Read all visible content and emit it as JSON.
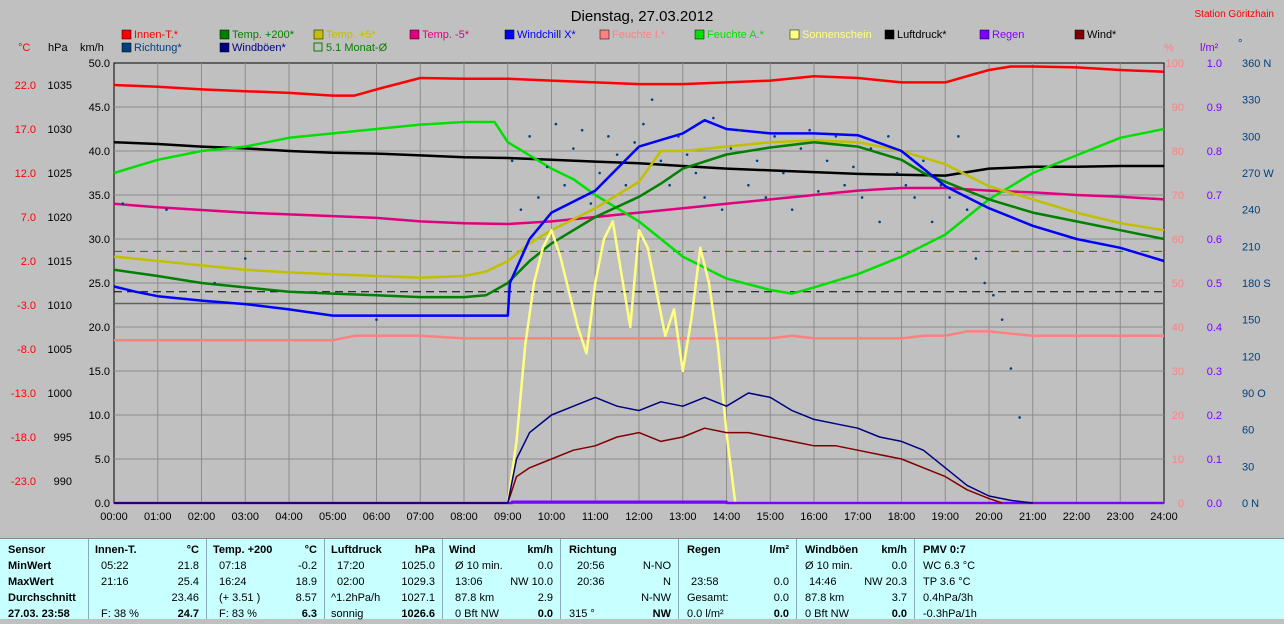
{
  "title": "Dienstag, 27.03.2012",
  "station": "Station Göritzhain",
  "legend": [
    {
      "label": "Innen-T.*",
      "color": "#ff0000"
    },
    {
      "label": "Temp. +200*",
      "color": "#008000"
    },
    {
      "label": "Temp. +5*",
      "color": "#c0c000"
    },
    {
      "label": "Temp. -5*",
      "color": "#e0007f"
    },
    {
      "label": "Windchill X*",
      "color": "#0000ff"
    },
    {
      "label": "Feuchte I.*",
      "color": "#ff8080"
    },
    {
      "label": "Feuchte A.*",
      "color": "#00e000"
    },
    {
      "label": "Sonnenschein",
      "color": "#ffff80"
    },
    {
      "label": "Luftdruck*",
      "color": "#000000"
    },
    {
      "label": "Regen",
      "color": "#8000ff"
    },
    {
      "label": "Wind*",
      "color": "#800000"
    },
    {
      "label": "Richtung*",
      "color": "#004080"
    },
    {
      "label": "Windböen*",
      "color": "#000080"
    },
    {
      "label": "5.1 Monat-Ø",
      "color": "#008000"
    }
  ],
  "axes": {
    "unit_c": "°C",
    "unit_hpa": "hPa",
    "unit_kmh": "km/h",
    "unit_pct": "%",
    "unit_lm2": "l/m²",
    "unit_deg": "°",
    "c_ticks": [
      "22.0",
      "17.0",
      "12.0",
      "7.0",
      "2.0",
      "-3.0",
      "-8.0",
      "-13.0",
      "-18.0",
      "-23.0"
    ],
    "hpa_ticks": [
      "1035",
      "1030",
      "1025",
      "1020",
      "1015",
      "1010",
      "1005",
      "1000",
      "995",
      "990"
    ],
    "kmh_ticks": [
      "50.0",
      "45.0",
      "40.0",
      "35.0",
      "30.0",
      "25.0",
      "20.0",
      "15.0",
      "10.0",
      "5.0",
      "0.0"
    ],
    "pct_ticks": [
      "100",
      "90",
      "80",
      "70",
      "60",
      "50",
      "40",
      "30",
      "20",
      "10",
      "0"
    ],
    "lm2_ticks": [
      "1.0",
      "0.9",
      "0.8",
      "0.7",
      "0.6",
      "0.5",
      "0.4",
      "0.3",
      "0.2",
      "0.1",
      "0.0"
    ],
    "deg_ticks": [
      "360 N",
      "330",
      "300",
      "270 W",
      "240",
      "210",
      "180 S",
      "150",
      "120",
      "90 O",
      "60",
      "30",
      "0 N"
    ],
    "x_ticks": [
      "00:00",
      "01:00",
      "02:00",
      "03:00",
      "04:00",
      "05:00",
      "06:00",
      "07:00",
      "08:00",
      "09:00",
      "10:00",
      "11:00",
      "12:00",
      "13:00",
      "14:00",
      "15:00",
      "16:00",
      "17:00",
      "18:00",
      "19:00",
      "20:00",
      "21:00",
      "22:00",
      "23:00",
      "24:00"
    ]
  },
  "chart_data": {
    "type": "line",
    "x_unit": "hours",
    "ylim_kmh": [
      0,
      50
    ],
    "ylim_c": [
      -23,
      27
    ],
    "ylim_hpa": [
      990,
      1040
    ],
    "ylim_pct": [
      0,
      100
    ],
    "ylim_deg": [
      0,
      360
    ],
    "grid": true,
    "reference_lines": [
      {
        "name": "5.1 Monat-Ø",
        "scale": "kmh",
        "value": 28.6,
        "color": "#008000"
      },
      {
        "name": "",
        "scale": "kmh",
        "value": 24.0,
        "color": "#000000"
      }
    ],
    "series": [
      {
        "name": "Innen-T.*",
        "scale": "kmh",
        "color": "#ff0000",
        "x": [
          0,
          1,
          2,
          3,
          4,
          5,
          5.5,
          6,
          7,
          8,
          9,
          10,
          11,
          12,
          13,
          14,
          15,
          16,
          17,
          18,
          19,
          19.5,
          20,
          20.5,
          21,
          22,
          23,
          24
        ],
        "y": [
          47.5,
          47.3,
          47.0,
          46.8,
          46.6,
          46.3,
          46.3,
          47.0,
          48.3,
          48.2,
          48.2,
          48.0,
          47.8,
          47.6,
          47.6,
          47.8,
          48.0,
          48.5,
          48.3,
          47.8,
          47.8,
          48.5,
          49.2,
          49.6,
          49.6,
          49.5,
          49.2,
          49.0
        ]
      },
      {
        "name": "Temp. +200*",
        "scale": "kmh",
        "color": "#008000",
        "x": [
          0,
          1,
          2,
          3,
          4,
          5,
          6,
          7,
          8,
          8.5,
          9,
          9.5,
          10,
          11,
          12,
          12.5,
          13,
          14,
          15,
          16,
          17,
          18,
          18.5,
          19,
          20,
          21,
          22,
          23,
          24
        ],
        "y": [
          26.5,
          25.8,
          25.0,
          24.5,
          24.0,
          23.8,
          23.6,
          23.4,
          23.4,
          23.6,
          25.0,
          27.5,
          29.5,
          32.5,
          34.8,
          36.3,
          38.0,
          39.6,
          40.4,
          41.0,
          40.5,
          39.0,
          37.5,
          36.5,
          34.5,
          33.0,
          32.0,
          31.0,
          30.0
        ]
      },
      {
        "name": "Temp. +5*",
        "scale": "kmh",
        "color": "#c0c000",
        "x": [
          0,
          1,
          2,
          3,
          4,
          5,
          6,
          7,
          8,
          8.5,
          9,
          9.5,
          10,
          11,
          12,
          12.5,
          13,
          14,
          15,
          16,
          17,
          18,
          19,
          20,
          21,
          22,
          23,
          24
        ],
        "y": [
          28.0,
          27.5,
          27.0,
          26.5,
          26.2,
          26.0,
          25.8,
          25.6,
          25.8,
          26.3,
          27.5,
          29.5,
          31.0,
          33.5,
          36.5,
          40.0,
          40.0,
          40.5,
          41.0,
          41.2,
          41.0,
          40.0,
          38.5,
          36.0,
          34.5,
          33.0,
          31.8,
          31.0
        ]
      },
      {
        "name": "Temp. -5*",
        "scale": "kmh",
        "color": "#e0007f",
        "x": [
          0,
          1,
          2,
          3,
          4,
          5,
          6,
          7,
          8,
          9,
          10,
          11,
          12,
          13,
          14,
          15,
          16,
          17,
          18,
          19,
          20,
          21,
          22,
          23,
          24
        ],
        "y": [
          34.0,
          33.6,
          33.3,
          33.0,
          32.8,
          32.6,
          32.4,
          32.0,
          31.8,
          31.7,
          32.0,
          32.5,
          33.0,
          33.5,
          34.0,
          34.5,
          35.0,
          35.5,
          35.8,
          35.8,
          35.5,
          35.3,
          35.0,
          34.8,
          34.5
        ]
      },
      {
        "name": "Windchill X*",
        "scale": "kmh",
        "color": "#0000ff",
        "x": [
          0,
          0.5,
          1,
          2,
          3,
          4,
          5,
          6,
          7,
          8,
          9,
          9.05,
          9.5,
          10,
          11,
          11.5,
          12,
          13,
          13.5,
          14,
          15,
          16,
          17,
          18,
          18.5,
          19,
          20,
          21,
          22,
          23,
          24
        ],
        "y": [
          24.6,
          24.0,
          23.5,
          23.0,
          22.6,
          22.0,
          21.3,
          21.3,
          21.3,
          21.3,
          21.3,
          25.0,
          30.0,
          33.0,
          35.5,
          38.0,
          40.5,
          42.0,
          43.5,
          42.5,
          42.0,
          42.0,
          41.8,
          40.0,
          38.0,
          36.0,
          33.5,
          31.5,
          30.0,
          29.0,
          27.5
        ]
      },
      {
        "name": "Feuchte I.*",
        "scale": "kmh",
        "color": "#ff8080",
        "x": [
          0,
          5,
          5.5,
          7,
          8,
          9,
          10,
          11,
          12,
          13,
          14,
          15,
          15.5,
          16,
          17,
          18,
          18.5,
          19,
          19.5,
          20,
          21,
          22,
          23,
          24
        ],
        "y": [
          18.5,
          18.5,
          19.0,
          19.0,
          18.7,
          18.7,
          18.7,
          18.7,
          18.7,
          18.7,
          18.7,
          18.7,
          19.0,
          18.7,
          18.7,
          18.7,
          19.0,
          19.0,
          19.5,
          19.5,
          19.0,
          19.0,
          19.0,
          19.0
        ]
      },
      {
        "name": "Feuchte A.*",
        "scale": "kmh",
        "color": "#00e000",
        "x": [
          0,
          1,
          2,
          3,
          4,
          5,
          6,
          7,
          8,
          8.7,
          9,
          10,
          10.5,
          11,
          12,
          12.5,
          13,
          14,
          15,
          15.5,
          16,
          17,
          18,
          19,
          20,
          21,
          22,
          23,
          24
        ],
        "y": [
          37.5,
          39.0,
          40.0,
          40.5,
          41.5,
          42.0,
          42.5,
          43.0,
          43.3,
          43.3,
          41.0,
          38.0,
          36.8,
          35.0,
          32.0,
          30.0,
          28.0,
          25.5,
          24.2,
          23.8,
          24.5,
          26.0,
          28.0,
          30.5,
          34.5,
          37.5,
          39.5,
          41.5,
          42.5
        ]
      },
      {
        "name": "Sonnenschein",
        "scale": "kmh",
        "color": "#ffff80",
        "x": [
          0,
          9.0,
          9.2,
          9.4,
          9.6,
          9.8,
          10.0,
          10.2,
          10.4,
          10.6,
          10.8,
          11.0,
          11.2,
          11.4,
          11.6,
          11.8,
          12.0,
          12.2,
          12.4,
          12.6,
          12.8,
          13.0,
          13.2,
          13.4,
          13.6,
          13.8,
          14.0,
          14.2,
          24
        ],
        "y": [
          0,
          0,
          7,
          18,
          25,
          29,
          31,
          28,
          24,
          20,
          17,
          25,
          30,
          32,
          26,
          20,
          31,
          29,
          24,
          19,
          22,
          15,
          21,
          29,
          25,
          18,
          8,
          0,
          0
        ]
      },
      {
        "name": "Luftdruck*",
        "scale": "kmh",
        "color": "#000000",
        "x": [
          0,
          1,
          2,
          3,
          4,
          5,
          6,
          7,
          8,
          9,
          10,
          11,
          12,
          13,
          14,
          15,
          16,
          17,
          18,
          19,
          19.5,
          20,
          21,
          22,
          23,
          24
        ],
        "y": [
          41.0,
          40.8,
          40.5,
          40.3,
          40.0,
          39.8,
          39.7,
          39.5,
          39.3,
          39.2,
          39.0,
          38.8,
          38.6,
          38.3,
          38.0,
          37.8,
          37.6,
          37.4,
          37.3,
          37.2,
          37.6,
          38.0,
          38.2,
          38.2,
          38.3,
          38.3
        ]
      },
      {
        "name": "Regen",
        "scale": "kmh",
        "color": "#8000ff",
        "x": [
          0,
          9.1,
          9.1,
          14.0,
          14.0,
          24
        ],
        "y": [
          0,
          0,
          0.15,
          0.15,
          0,
          0
        ]
      },
      {
        "name": "Wind*",
        "scale": "kmh",
        "color": "#800000",
        "x": [
          0,
          9.0,
          9.2,
          9.5,
          10,
          10.5,
          11,
          11.5,
          12,
          12.5,
          13,
          13.5,
          14,
          14.5,
          15,
          15.5,
          16,
          16.5,
          17,
          17.5,
          18,
          18.5,
          19,
          19.5,
          20,
          20.3
        ],
        "y": [
          0,
          0,
          3.0,
          4.0,
          5.0,
          6.0,
          6.5,
          7.5,
          8.0,
          7.0,
          7.5,
          8.5,
          8.0,
          8.0,
          7.5,
          7.0,
          6.5,
          6.5,
          6.0,
          5.5,
          5.0,
          4.0,
          3.0,
          1.5,
          0.5,
          0
        ]
      },
      {
        "name": "Windböen*",
        "scale": "kmh",
        "color": "#000080",
        "x": [
          0,
          9.0,
          9.2,
          9.5,
          10,
          10.5,
          11,
          11.5,
          12,
          12.5,
          13,
          13.5,
          14,
          14.5,
          15,
          15.5,
          16,
          16.5,
          17,
          17.5,
          18,
          18.5,
          19,
          19.5,
          20,
          20.5,
          21
        ],
        "y": [
          0,
          0,
          5.0,
          8.0,
          10.0,
          11.0,
          12.0,
          11.0,
          10.5,
          11.5,
          11.0,
          12.0,
          11.0,
          12.5,
          12.0,
          10.5,
          9.5,
          9.0,
          8.5,
          7.5,
          7.0,
          6.0,
          4.0,
          2.0,
          0.8,
          0.3,
          0
        ]
      },
      {
        "name": "Richtung*",
        "scale": "deg",
        "color": "#004080",
        "marker": "dot",
        "x": [
          9.1,
          9.3,
          9.5,
          9.7,
          9.9,
          10.1,
          10.3,
          10.5,
          10.7,
          10.9,
          11.1,
          11.3,
          11.5,
          11.7,
          11.9,
          12.1,
          12.3,
          12.5,
          12.7,
          12.9,
          13.1,
          13.3,
          13.5,
          13.7,
          13.9,
          14.1,
          14.3,
          14.5,
          14.7,
          14.9,
          15.1,
          15.3,
          15.5,
          15.7,
          15.9,
          16.1,
          16.3,
          16.5,
          16.7,
          16.9,
          17.1,
          17.3,
          17.5,
          17.7,
          17.9,
          18.1,
          18.3,
          18.5,
          18.7,
          18.9,
          19.1,
          19.3,
          19.5,
          19.7,
          19.9,
          20.1,
          20.3,
          20.5,
          20.7,
          0.2,
          1.2,
          2.3,
          3.0,
          6.0
        ],
        "y": [
          280,
          240,
          300,
          250,
          275,
          310,
          260,
          290,
          305,
          245,
          270,
          300,
          285,
          260,
          295,
          310,
          330,
          280,
          260,
          300,
          285,
          270,
          250,
          315,
          240,
          290,
          305,
          260,
          280,
          250,
          300,
          270,
          240,
          290,
          305,
          255,
          280,
          300,
          260,
          275,
          250,
          290,
          230,
          300,
          270,
          260,
          250,
          280,
          230,
          260,
          250,
          300,
          240,
          200,
          180,
          170,
          150,
          110,
          70,
          245,
          240,
          180,
          200,
          150
        ]
      }
    ]
  },
  "stats": {
    "sensor": {
      "title": "Sensor",
      "min": "MinWert",
      "max": "MaxWert",
      "avg": "Durchschnitt",
      "cur": "27.03. 23:58"
    },
    "innen": {
      "title": "Innen-T.",
      "unit": "°C",
      "min_t": "05:22",
      "min_v": "21.8",
      "max_t": "21:16",
      "max_v": "25.4",
      "avg_t": "",
      "avg_v": "23.46",
      "cur_t": "F: 38 %",
      "cur_v": "24.7"
    },
    "temp": {
      "title": "Temp. +200",
      "unit": "°C",
      "min_t": "07:18",
      "min_v": "-0.2",
      "max_t": "16:24",
      "max_v": "18.9",
      "avg_t": "(+ 3.51 )",
      "avg_v": "8.57",
      "cur_t": "F: 83 %",
      "cur_v": "6.3"
    },
    "luft": {
      "title": "Luftdruck",
      "unit": "hPa",
      "min_t": "17:20",
      "min_v": "1025.0",
      "max_t": "02:00",
      "max_v": "1029.3",
      "avg_t": "^1.2hPa/h",
      "avg_v": "1027.1",
      "cur_t": "sonnig",
      "cur_v": "1026.6"
    },
    "wind": {
      "title": "Wind",
      "unit": "km/h",
      "min_t": "Ø 10 min.",
      "min_v": "0.0",
      "max_t": "13:06",
      "max_v": "NW 10.0",
      "avg_t": "87.8 km",
      "avg_v": "2.9",
      "cur_t": "0 Bft NW",
      "cur_v": "0.0"
    },
    "richtung": {
      "title": "Richtung",
      "min_t": "20:56",
      "min_v": "N-NO",
      "max_t": "20:36",
      "max_v": "N",
      "avg_t": "",
      "avg_v": "N-NW",
      "cur_t": "315 °",
      "cur_v": "NW"
    },
    "regen": {
      "title": "Regen",
      "unit": "l/m²",
      "min_t": "",
      "min_v": "",
      "max_t": "23:58",
      "max_v": "0.0",
      "avg_t": "Gesamt:",
      "avg_v": "0.0",
      "cur_t": "0.0 l/m²",
      "cur_v": "0.0"
    },
    "boeen": {
      "title": "Windböen",
      "unit": "km/h",
      "min_t": "Ø 10 min.",
      "min_v": "0.0",
      "max_t": "14:46",
      "max_v": "NW 20.3",
      "avg_t": "87.8 km",
      "avg_v": "3.7",
      "cur_t": "0 Bft NW",
      "cur_v": "0.0"
    },
    "pmv": {
      "title": "PMV 0:7",
      "l1": "WC 6.3 °C",
      "l2": "TP 3.6 °C",
      "l3": "0.4hPa/3h",
      "l4": "-0.3hPa/1h"
    }
  }
}
